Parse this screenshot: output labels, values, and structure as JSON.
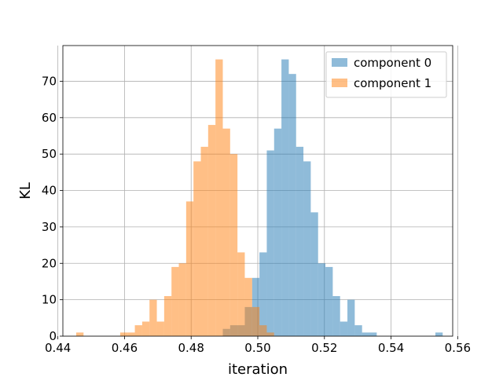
{
  "chart_data": {
    "type": "histogram",
    "title": "",
    "xlabel": "iteration",
    "ylabel": "KL",
    "xlim": [
      0.4415,
      0.5585
    ],
    "ylim": [
      0,
      79.8
    ],
    "x_ticks": [
      0.44,
      0.46,
      0.48,
      0.5,
      0.52,
      0.54,
      0.56
    ],
    "x_tick_labels": [
      "0.44",
      "0.46",
      "0.48",
      "0.50",
      "0.52",
      "0.54",
      "0.56"
    ],
    "y_ticks": [
      0,
      10,
      20,
      30,
      40,
      50,
      60,
      70
    ],
    "y_tick_labels": [
      "0",
      "10",
      "20",
      "30",
      "40",
      "50",
      "60",
      "70"
    ],
    "grid": true,
    "legend_position": "top-right",
    "bin_width": 0.0022,
    "series": [
      {
        "name": "component 0",
        "color": "#1f77b4",
        "alpha": 0.5,
        "bin_start": 0.4895,
        "counts": [
          2,
          3,
          3,
          8,
          16,
          23,
          51,
          57,
          76,
          72,
          52,
          48,
          34,
          20,
          19,
          11,
          4,
          10,
          3,
          1,
          1,
          0,
          0,
          0,
          0,
          0,
          0,
          0,
          0,
          1
        ]
      },
      {
        "name": "component 1",
        "color": "#ff7f0e",
        "alpha": 0.5,
        "bin_start": 0.4455,
        "counts": [
          1,
          0,
          0,
          0,
          0,
          0,
          1,
          1,
          3,
          4,
          10,
          4,
          11,
          19,
          20,
          37,
          48,
          52,
          58,
          76,
          57,
          50,
          23,
          16,
          8,
          3,
          1
        ]
      }
    ]
  }
}
